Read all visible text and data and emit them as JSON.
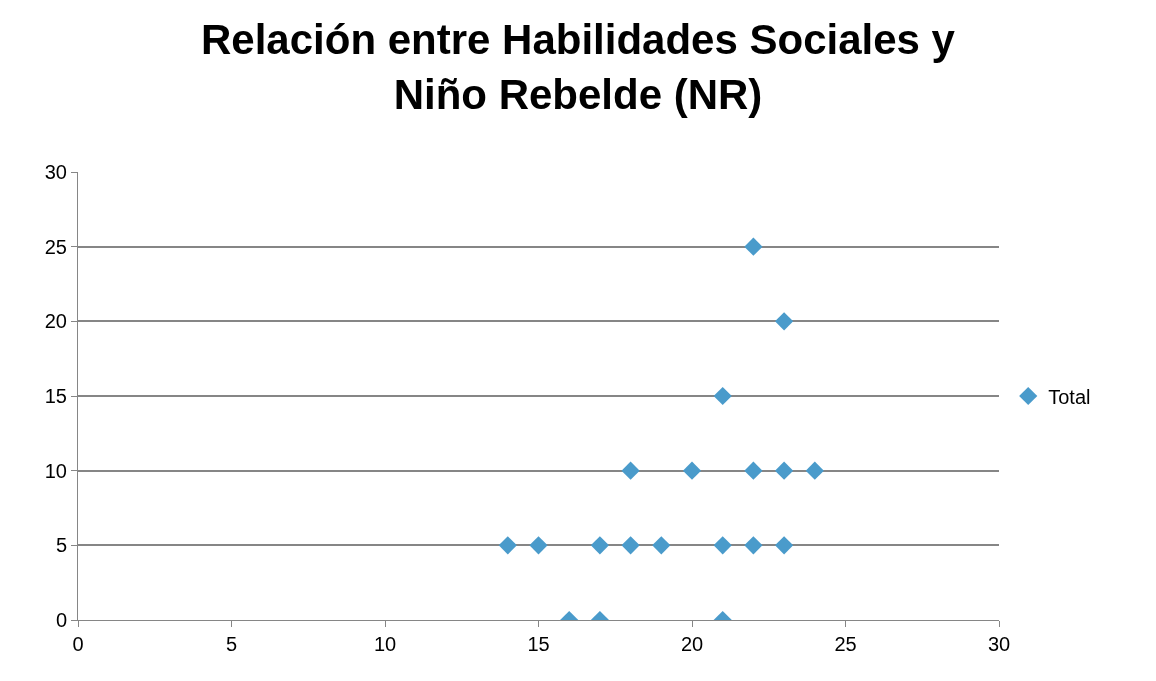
{
  "chart_data": {
    "type": "scatter",
    "title": "Relación entre Habilidades Sociales y\nNiño Rebelde (NR)",
    "series": [
      {
        "name": "Total",
        "color": "#4a9bcb",
        "x": [
          22,
          23,
          21,
          18,
          20,
          22,
          23,
          24,
          14,
          15,
          17,
          18,
          19,
          21,
          22,
          23,
          16,
          17,
          21
        ],
        "values": [
          25,
          20,
          15,
          10,
          10,
          10,
          10,
          10,
          5,
          5,
          5,
          5,
          5,
          5,
          5,
          5,
          0,
          0,
          0
        ]
      }
    ],
    "xlim": [
      0,
      30
    ],
    "xticks": [
      0,
      5,
      10,
      15,
      20,
      25,
      30
    ],
    "ylim": [
      0,
      30
    ],
    "yticks": [
      0,
      5,
      10,
      15,
      20,
      25,
      30
    ],
    "grid": "y",
    "legend": "right",
    "marker": "diamond"
  }
}
